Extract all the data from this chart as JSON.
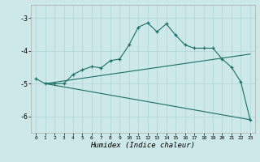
{
  "xlabel": "Humidex (Indice chaleur)",
  "bg_color": "#cce8e8",
  "line_color": "#1a6e64",
  "grid_color": "#b0d4d4",
  "xlim": [
    -0.5,
    23.5
  ],
  "ylim": [
    -6.5,
    -2.6
  ],
  "yticks": [
    -6,
    -5,
    -4,
    -3
  ],
  "xticks": [
    0,
    1,
    2,
    3,
    4,
    5,
    6,
    7,
    8,
    9,
    10,
    11,
    12,
    13,
    14,
    15,
    16,
    17,
    18,
    19,
    20,
    21,
    22,
    23
  ],
  "line1_x": [
    0,
    1,
    2,
    3,
    4,
    5,
    6,
    7,
    8,
    9,
    10,
    11,
    12,
    13,
    14,
    15,
    16,
    17,
    18,
    19,
    20,
    21,
    22,
    23
  ],
  "line1_y": [
    -4.85,
    -5.0,
    -5.0,
    -5.0,
    -4.72,
    -4.58,
    -4.48,
    -4.52,
    -4.3,
    -4.25,
    -3.82,
    -3.28,
    -3.15,
    -3.42,
    -3.18,
    -3.52,
    -3.82,
    -3.92,
    -3.92,
    -3.92,
    -4.25,
    -4.5,
    -4.95,
    -6.1
  ],
  "line2_x": [
    1,
    23
  ],
  "line2_y": [
    -5.0,
    -4.1
  ],
  "line3_x": [
    1,
    23
  ],
  "line3_y": [
    -5.0,
    -6.1
  ]
}
